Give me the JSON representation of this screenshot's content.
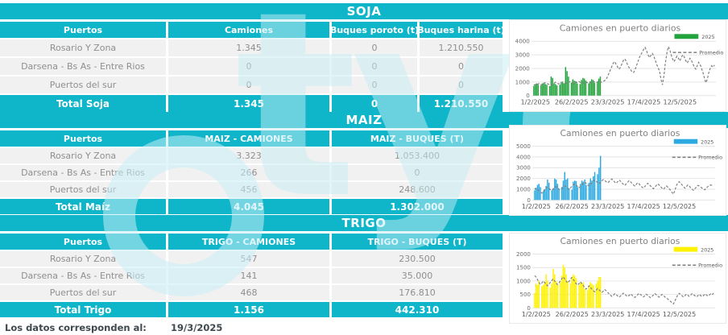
{
  "colors": {
    "teal": "#0FB5C9",
    "soja_bar": "#22A33C",
    "maiz_bar": "#2BA9E0",
    "trigo_bar": "#FFF200",
    "promedio_line": "#7f7f7f",
    "row_bg": "#f1f1f1",
    "row_text": "#8f8f8f"
  },
  "watermark": "tyc",
  "footer": {
    "label": "Los datos corresponden al:",
    "date": "19/3/2025"
  },
  "sections": [
    {
      "id": "soja",
      "title": "SOJA",
      "columns": [
        "Puertos",
        "Camiones",
        "Buques poroto (t)",
        "Buques harina (t)"
      ],
      "rows": [
        [
          "Rosario Y Zona",
          "1.345",
          "0",
          "1.210.550"
        ],
        [
          "Darsena - Bs As - Entre Rios",
          "0",
          "0",
          "0"
        ],
        [
          "Puertos del sur",
          "0",
          "0",
          "0"
        ]
      ],
      "total": [
        "Total Soja",
        "1.345",
        "0",
        "1.210.550"
      ]
    },
    {
      "id": "maiz",
      "title": "MAIZ",
      "columns": [
        "Puertos",
        "MAIZ - CAMIONES",
        "MAIZ - BUQUES (T)"
      ],
      "rows": [
        [
          "Rosario Y Zona",
          "3.323",
          "1.053.400"
        ],
        [
          "Darsena - Bs As - Entre Rios",
          "266",
          "0"
        ],
        [
          "Puertos del sur",
          "456",
          "248.600"
        ]
      ],
      "total": [
        "Total Maíz",
        "4.045",
        "1.302.000"
      ]
    },
    {
      "id": "trigo",
      "title": "TRIGO",
      "columns": [
        "Puertos",
        "TRIGO - CAMIONES",
        "TRIGO - BUQUES (T)"
      ],
      "rows": [
        [
          "Rosario Y Zona",
          "547",
          "230.500"
        ],
        [
          "Darsena - Bs As - Entre Rios",
          "141",
          "35.000"
        ],
        [
          "Puertos del sur",
          "468",
          "176.810"
        ]
      ],
      "total": [
        "Total Trigo",
        "1.156",
        "442.310"
      ]
    }
  ],
  "chart_data": [
    {
      "type": "bar",
      "title": "Camiones en puerto diarios",
      "legend": [
        "2025",
        "Promedio"
      ],
      "legend_position": "top-right",
      "grid": true,
      "bar_color": "#22A33C",
      "line_color": "#7f7f7f",
      "ylim": [
        0,
        4000
      ],
      "y_step": 1000,
      "x_tick_labels": [
        "1/2/2025",
        "26/2/2025",
        "23/3/2025",
        "17/4/2025",
        "12/5/2025"
      ],
      "x_tick_days": [
        0,
        25,
        50,
        75,
        100
      ],
      "total_days": 126,
      "series": [
        {
          "name": "2025",
          "type": "bar",
          "values": [
            700,
            850,
            900,
            800,
            0,
            750,
            900,
            950,
            850,
            800,
            0,
            700,
            1400,
            1300,
            900,
            850,
            750,
            0,
            800,
            1000,
            950,
            900,
            2100,
            1800,
            1400,
            0,
            950,
            1200,
            1100,
            1050,
            900,
            0,
            850,
            1150,
            1300,
            1250,
            1100,
            0,
            900,
            1050,
            1200,
            1150,
            950,
            0,
            1000,
            1250,
            1400
          ]
        },
        {
          "name": "Promedio",
          "type": "line",
          "values": [
            750,
            820,
            780,
            850,
            900,
            820,
            760,
            880,
            950,
            900,
            850,
            800,
            760,
            830,
            900,
            980,
            920,
            860,
            900,
            950,
            1000,
            940,
            880,
            920,
            980,
            1020,
            960,
            900,
            850,
            920,
            990,
            1050,
            980,
            920,
            880,
            950,
            1010,
            960,
            900,
            940,
            1000,
            1060,
            1000,
            950,
            1000,
            1080,
            1020,
            980,
            1040,
            1100,
            1200,
            1400,
            1650,
            1900,
            2150,
            2400,
            2500,
            2300,
            2100,
            1950,
            2100,
            2350,
            2600,
            2700,
            2500,
            2250,
            2050,
            1900,
            1750,
            1700,
            1900,
            2200,
            2500,
            2800,
            3000,
            3200,
            3400,
            3550,
            3300,
            3000,
            2800,
            2950,
            3100,
            2900,
            2600,
            2300,
            2050,
            1800,
            1200,
            800,
            1500,
            2400,
            3100,
            3600,
            3400,
            3000,
            2700,
            2500,
            2700,
            2900,
            2750,
            2550,
            2800,
            3000,
            2850,
            2600,
            2400,
            2550,
            2750,
            2600,
            2350,
            2100,
            1950,
            2200,
            2450,
            2300,
            2000,
            1700,
            1300,
            950,
            1200,
            1700,
            2000,
            2200,
            2100,
            2250
          ]
        }
      ]
    },
    {
      "type": "bar",
      "title": "Camiones en puerto diarios",
      "legend": [
        "2025",
        "Promedio"
      ],
      "legend_position": "top-right",
      "grid": true,
      "bar_color": "#2BA9E0",
      "line_color": "#7f7f7f",
      "ylim": [
        0,
        5000
      ],
      "y_step": 1000,
      "x_tick_labels": [
        "1/2/2025",
        "26/2/2025",
        "23/3/2025",
        "17/4/2025",
        "12/5/2025"
      ],
      "x_tick_days": [
        0,
        25,
        50,
        75,
        100
      ],
      "total_days": 126,
      "series": [
        {
          "name": "2025",
          "type": "bar",
          "values": [
            900,
            1100,
            1400,
            1500,
            1200,
            0,
            800,
            1000,
            1300,
            1900,
            1600,
            0,
            900,
            1100,
            2000,
            1900,
            1500,
            1000,
            0,
            1200,
            1800,
            2600,
            1900,
            2000,
            1100,
            0,
            950,
            1700,
            1800,
            1750,
            1200,
            0,
            1500,
            1800,
            1700,
            1900,
            1400,
            0,
            1600,
            2000,
            1800,
            2200,
            2600,
            0,
            2400,
            3000,
            4100
          ]
        },
        {
          "name": "Promedio",
          "type": "line",
          "values": [
            1000,
            1100,
            950,
            850,
            700,
            650,
            800,
            950,
            1100,
            1200,
            1100,
            950,
            900,
            1000,
            1150,
            1250,
            1150,
            1000,
            950,
            1050,
            1200,
            1300,
            1250,
            1100,
            1000,
            1100,
            1250,
            1400,
            1500,
            1400,
            1250,
            1150,
            1250,
            1400,
            1550,
            1650,
            1550,
            1400,
            1300,
            1450,
            1600,
            1750,
            1850,
            1750,
            1600,
            1500,
            1650,
            1800,
            1900,
            1800,
            1700,
            1600,
            1700,
            1850,
            1950,
            1800,
            1650,
            1550,
            1700,
            1850,
            1750,
            1600,
            1450,
            1350,
            1500,
            1650,
            1800,
            1700,
            1550,
            1400,
            1300,
            1450,
            1600,
            1500,
            1350,
            1200,
            1100,
            1250,
            1400,
            1550,
            1450,
            1300,
            1150,
            1050,
            1200,
            1350,
            1500,
            1400,
            1250,
            1100,
            1000,
            1150,
            1300,
            1200,
            1050,
            900,
            700,
            550,
            900,
            1300,
            1600,
            1700,
            1550,
            1400,
            1250,
            1100,
            1250,
            1400,
            1300,
            1150,
            1000,
            900,
            1050,
            1200,
            1350,
            1300,
            1200,
            1100,
            1000,
            950,
            1100,
            1250,
            1350,
            1400,
            1350,
            1400
          ]
        }
      ]
    },
    {
      "type": "bar",
      "title": "Camiones en puerto diarios",
      "legend": [
        "2025",
        "Promedio"
      ],
      "legend_position": "top-right",
      "grid": true,
      "bar_color": "#FFF200",
      "line_color": "#7f7f7f",
      "ylim": [
        0,
        2000
      ],
      "y_step": 500,
      "x_tick_labels": [
        "1/2/2025",
        "26/2/2025",
        "23/3/2025",
        "17/4/2025",
        "12/5/2025"
      ],
      "x_tick_days": [
        0,
        25,
        50,
        75,
        100
      ],
      "total_days": 126,
      "series": [
        {
          "name": "2025",
          "type": "bar",
          "values": [
            550,
            900,
            850,
            1000,
            0,
            800,
            850,
            950,
            1250,
            1000,
            0,
            750,
            900,
            1450,
            1250,
            1000,
            850,
            0,
            950,
            1200,
            1600,
            1500,
            1250,
            1000,
            0,
            900,
            1150,
            1250,
            1200,
            1100,
            0,
            850,
            950,
            900,
            950,
            700,
            0,
            650,
            850,
            950,
            900,
            850,
            0,
            900,
            1000,
            1150,
            1150
          ]
        },
        {
          "name": "Promedio",
          "type": "line",
          "values": [
            1200,
            1150,
            1050,
            950,
            880,
            920,
            1000,
            950,
            880,
            820,
            880,
            950,
            1020,
            1080,
            1000,
            920,
            870,
            930,
            1010,
            1090,
            1150,
            1080,
            1000,
            930,
            980,
            1060,
            1130,
            1060,
            980,
            900,
            850,
            900,
            970,
            900,
            830,
            760,
            700,
            750,
            820,
            760,
            700,
            640,
            600,
            650,
            720,
            680,
            620,
            580,
            620,
            680,
            640,
            580,
            520,
            470,
            430,
            470,
            530,
            490,
            440,
            400,
            440,
            500,
            550,
            510,
            460,
            420,
            460,
            520,
            480,
            430,
            390,
            430,
            490,
            540,
            500,
            450,
            410,
            450,
            510,
            470,
            420,
            380,
            420,
            480,
            530,
            490,
            440,
            400,
            440,
            500,
            460,
            410,
            370,
            330,
            290,
            240,
            190,
            150,
            250,
            380,
            480,
            540,
            500,
            450,
            410,
            450,
            510,
            470,
            430,
            470,
            530,
            490,
            450,
            410,
            450,
            500,
            460,
            420,
            460,
            520,
            480,
            440,
            480,
            520,
            490,
            550
          ]
        }
      ]
    }
  ]
}
